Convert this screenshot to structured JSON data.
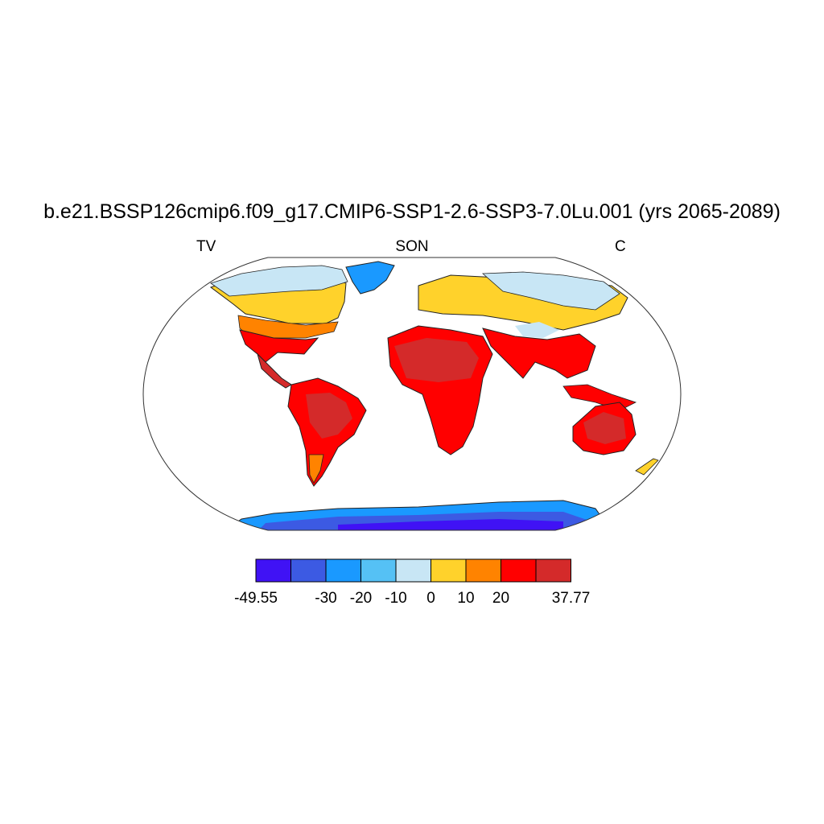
{
  "title": "b.e21.BSSP126cmip6.f09_g17.CMIP6-SSP1-2.6-SSP3-7.0Lu.001 (yrs 2065-2089)",
  "subtitle_left": "TV",
  "subtitle_center": "SON",
  "subtitle_right": "C",
  "colorbar": {
    "colors": [
      "#4012f5",
      "#3c5ae3",
      "#1a99ff",
      "#55c1f5",
      "#c8e6f5",
      "#ffd22b",
      "#ff8300",
      "#ff0000",
      "#d42a2a"
    ],
    "boundaries": [
      "-49.55",
      "",
      "-30",
      "-20",
      "-10",
      "0",
      "10",
      "20",
      "",
      "37.77"
    ]
  }
}
